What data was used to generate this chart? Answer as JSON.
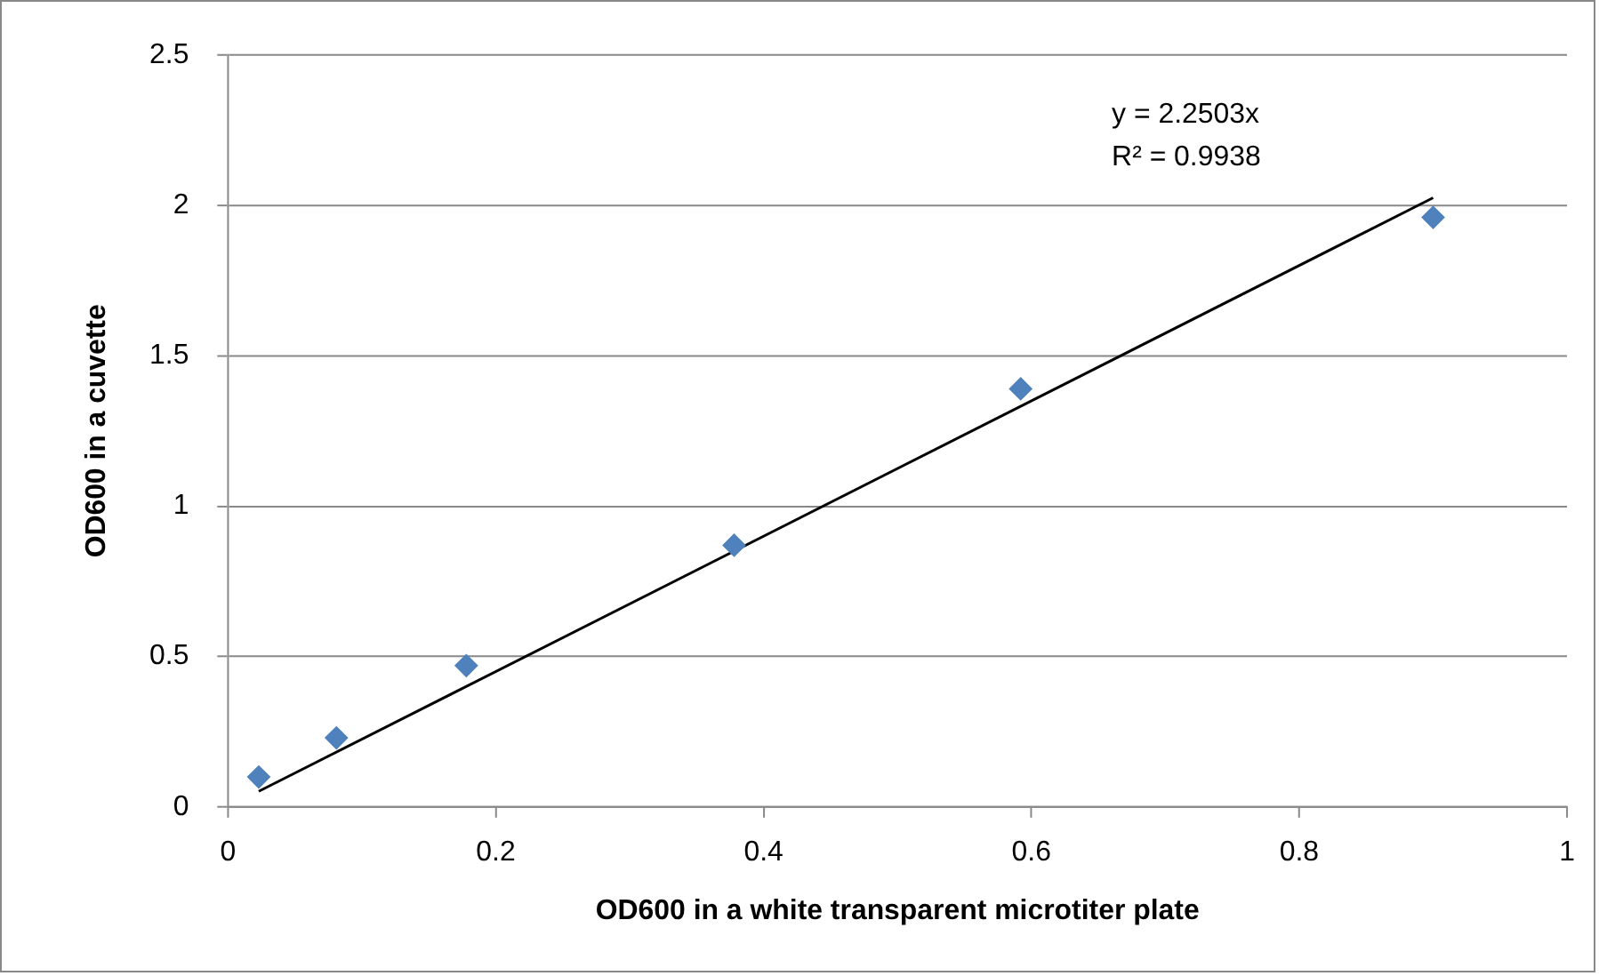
{
  "chart_data": {
    "type": "scatter",
    "xlabel": "OD600 in a white transparent microtiter plate",
    "ylabel": "OD600 in a cuvette",
    "xlim": [
      0,
      1
    ],
    "xticks": [
      0,
      0.2,
      0.4,
      0.6,
      0.8,
      1
    ],
    "ylim": [
      0,
      2.5
    ],
    "yticks": [
      0,
      0.5,
      1,
      1.5,
      2,
      2.5
    ],
    "grid": "y",
    "marker": "diamond",
    "series": [
      {
        "color": "#4f81bd",
        "x": [
          0.023,
          0.081,
          0.178,
          0.378,
          0.592,
          0.9
        ],
        "values": [
          0.1,
          0.23,
          0.47,
          0.87,
          1.39,
          1.96
        ]
      },
      {
        "type": "line",
        "marker": "none",
        "color": "#000000",
        "x": [
          0.023,
          0.9
        ],
        "values": [
          0.052,
          2.025
        ]
      }
    ],
    "annotations": [
      "y = 2.2503x",
      "R² = 0.9938"
    ]
  }
}
